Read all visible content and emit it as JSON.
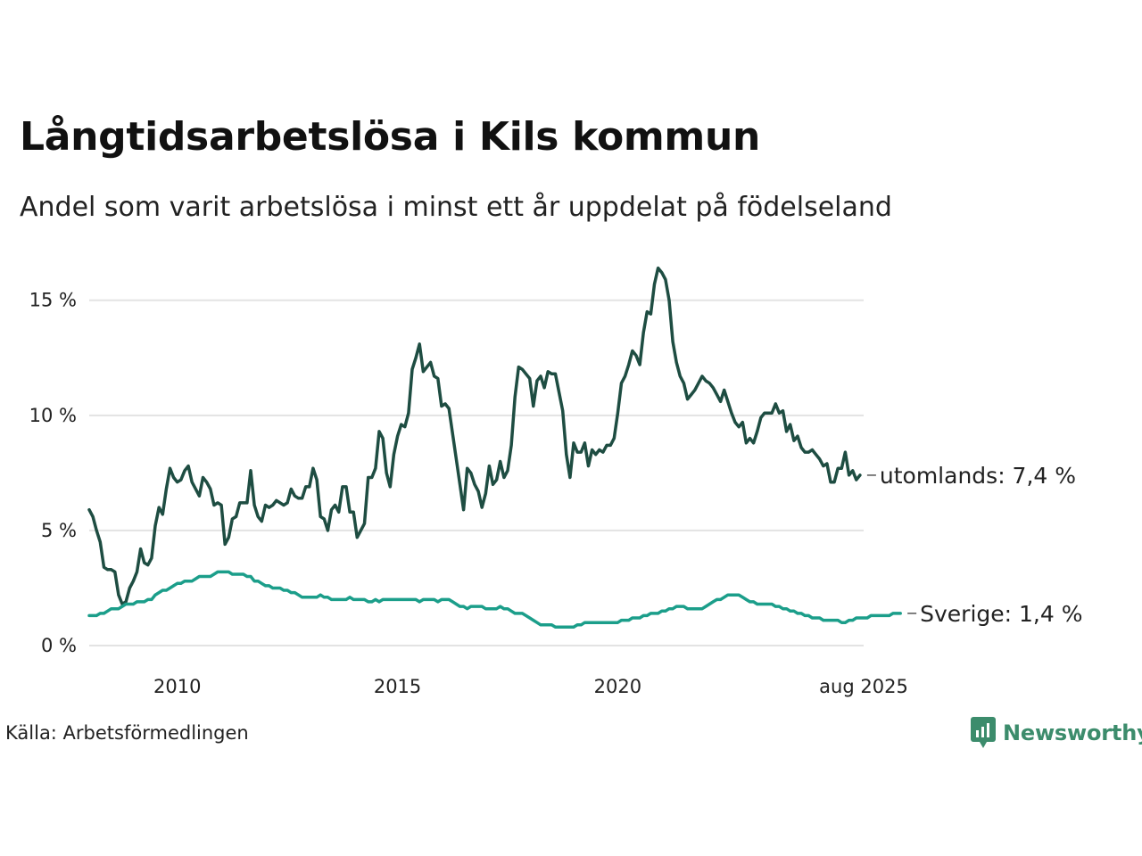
{
  "title": "Långtidsarbetslösa i Kils kommun",
  "subtitle": "Andel som varit arbetslösa i minst ett år uppdelat på födelseland",
  "source": "Källa: Arbetsförmedlingen",
  "brand": "Newsworthy",
  "chart_data": {
    "type": "line",
    "x_start": 2008.0,
    "x_step_months": 1,
    "xlim": [
      2008.0,
      2025.583
    ],
    "ylim": [
      0,
      16.5
    ],
    "yticks": [
      0,
      5,
      10,
      15
    ],
    "ytick_labels": [
      "0 %",
      "5 %",
      "10 %",
      "15 %"
    ],
    "xticks": [
      2010,
      2015,
      2020,
      2025.583
    ],
    "xtick_labels": [
      "2010",
      "2015",
      "2020",
      "aug 2025"
    ],
    "grid": "horizontal",
    "series": [
      {
        "name": "utomlands",
        "end_label": "utomlands: 7,4 %",
        "color": "#1e4d42",
        "values": [
          5.9,
          5.6,
          5.0,
          4.5,
          3.4,
          3.3,
          3.3,
          3.2,
          2.2,
          1.8,
          1.9,
          2.5,
          2.8,
          3.2,
          4.2,
          3.6,
          3.5,
          3.8,
          5.2,
          6.0,
          5.7,
          6.8,
          7.7,
          7.3,
          7.1,
          7.2,
          7.6,
          7.8,
          7.1,
          6.8,
          6.5,
          7.3,
          7.1,
          6.8,
          6.1,
          6.2,
          6.1,
          4.4,
          4.7,
          5.5,
          5.6,
          6.2,
          6.2,
          6.2,
          7.6,
          6.1,
          5.6,
          5.4,
          6.1,
          6.0,
          6.1,
          6.3,
          6.2,
          6.1,
          6.2,
          6.8,
          6.5,
          6.4,
          6.4,
          6.9,
          6.9,
          7.7,
          7.2,
          5.6,
          5.5,
          5.0,
          5.9,
          6.1,
          5.8,
          6.9,
          6.9,
          5.8,
          5.8,
          4.7,
          5.0,
          5.3,
          7.3,
          7.3,
          7.7,
          9.3,
          9.0,
          7.5,
          6.9,
          8.3,
          9.1,
          9.6,
          9.5,
          10.1,
          12.0,
          12.5,
          13.1,
          11.9,
          12.1,
          12.3,
          11.7,
          11.6,
          10.4,
          10.5,
          10.3,
          9.2,
          8.1,
          7.0,
          5.9,
          7.7,
          7.5,
          7.0,
          6.7,
          6.0,
          6.6,
          7.8,
          7.0,
          7.2,
          8.0,
          7.3,
          7.6,
          8.7,
          10.8,
          12.1,
          12.0,
          11.8,
          11.6,
          10.4,
          11.5,
          11.7,
          11.2,
          11.9,
          11.8,
          11.8,
          11.0,
          10.2,
          8.3,
          7.3,
          8.8,
          8.4,
          8.4,
          8.8,
          7.8,
          8.5,
          8.3,
          8.5,
          8.4,
          8.7,
          8.7,
          9.0,
          10.1,
          11.4,
          11.7,
          12.2,
          12.8,
          12.6,
          12.2,
          13.6,
          14.5,
          14.4,
          15.7,
          16.4,
          16.2,
          15.9,
          15.0,
          13.2,
          12.3,
          11.7,
          11.4,
          10.7,
          10.9,
          11.1,
          11.4,
          11.7,
          11.5,
          11.4,
          11.2,
          10.9,
          10.6,
          11.1,
          10.6,
          10.1,
          9.7,
          9.5,
          9.7,
          8.8,
          9.0,
          8.8,
          9.3,
          9.9,
          10.1,
          10.1,
          10.1,
          10.5,
          10.1,
          10.2,
          9.3,
          9.6,
          8.9,
          9.1,
          8.6,
          8.4,
          8.4,
          8.5,
          8.3,
          8.1,
          7.8,
          7.9,
          7.1,
          7.1,
          7.7,
          7.7,
          8.4,
          7.4,
          7.6,
          7.2,
          7.4
        ]
      },
      {
        "name": "Sverige",
        "end_label": "Sverige: 1,4 %",
        "color": "#1b9e8a",
        "values": [
          1.3,
          1.3,
          1.3,
          1.4,
          1.4,
          1.5,
          1.6,
          1.6,
          1.6,
          1.7,
          1.8,
          1.8,
          1.8,
          1.9,
          1.9,
          1.9,
          2.0,
          2.0,
          2.2,
          2.3,
          2.4,
          2.4,
          2.5,
          2.6,
          2.7,
          2.7,
          2.8,
          2.8,
          2.8,
          2.9,
          3.0,
          3.0,
          3.0,
          3.0,
          3.1,
          3.2,
          3.2,
          3.2,
          3.2,
          3.1,
          3.1,
          3.1,
          3.1,
          3.0,
          3.0,
          2.8,
          2.8,
          2.7,
          2.6,
          2.6,
          2.5,
          2.5,
          2.5,
          2.4,
          2.4,
          2.3,
          2.3,
          2.2,
          2.1,
          2.1,
          2.1,
          2.1,
          2.1,
          2.2,
          2.1,
          2.1,
          2.0,
          2.0,
          2.0,
          2.0,
          2.0,
          2.1,
          2.0,
          2.0,
          2.0,
          2.0,
          1.9,
          1.9,
          2.0,
          1.9,
          2.0,
          2.0,
          2.0,
          2.0,
          2.0,
          2.0,
          2.0,
          2.0,
          2.0,
          2.0,
          1.9,
          2.0,
          2.0,
          2.0,
          2.0,
          1.9,
          2.0,
          2.0,
          2.0,
          1.9,
          1.8,
          1.7,
          1.7,
          1.6,
          1.7,
          1.7,
          1.7,
          1.7,
          1.6,
          1.6,
          1.6,
          1.6,
          1.7,
          1.6,
          1.6,
          1.5,
          1.4,
          1.4,
          1.4,
          1.3,
          1.2,
          1.1,
          1.0,
          0.9,
          0.9,
          0.9,
          0.9,
          0.8,
          0.8,
          0.8,
          0.8,
          0.8,
          0.8,
          0.9,
          0.9,
          1.0,
          1.0,
          1.0,
          1.0,
          1.0,
          1.0,
          1.0,
          1.0,
          1.0,
          1.0,
          1.1,
          1.1,
          1.1,
          1.2,
          1.2,
          1.2,
          1.3,
          1.3,
          1.4,
          1.4,
          1.4,
          1.5,
          1.5,
          1.6,
          1.6,
          1.7,
          1.7,
          1.7,
          1.6,
          1.6,
          1.6,
          1.6,
          1.6,
          1.7,
          1.8,
          1.9,
          2.0,
          2.0,
          2.1,
          2.2,
          2.2,
          2.2,
          2.2,
          2.1,
          2.0,
          1.9,
          1.9,
          1.8,
          1.8,
          1.8,
          1.8,
          1.8,
          1.7,
          1.7,
          1.6,
          1.6,
          1.5,
          1.5,
          1.4,
          1.4,
          1.3,
          1.3,
          1.2,
          1.2,
          1.2,
          1.1,
          1.1,
          1.1,
          1.1,
          1.1,
          1.0,
          1.0,
          1.1,
          1.1,
          1.2,
          1.2,
          1.2,
          1.2,
          1.3,
          1.3,
          1.3,
          1.3,
          1.3,
          1.3,
          1.4,
          1.4,
          1.4
        ]
      }
    ]
  }
}
